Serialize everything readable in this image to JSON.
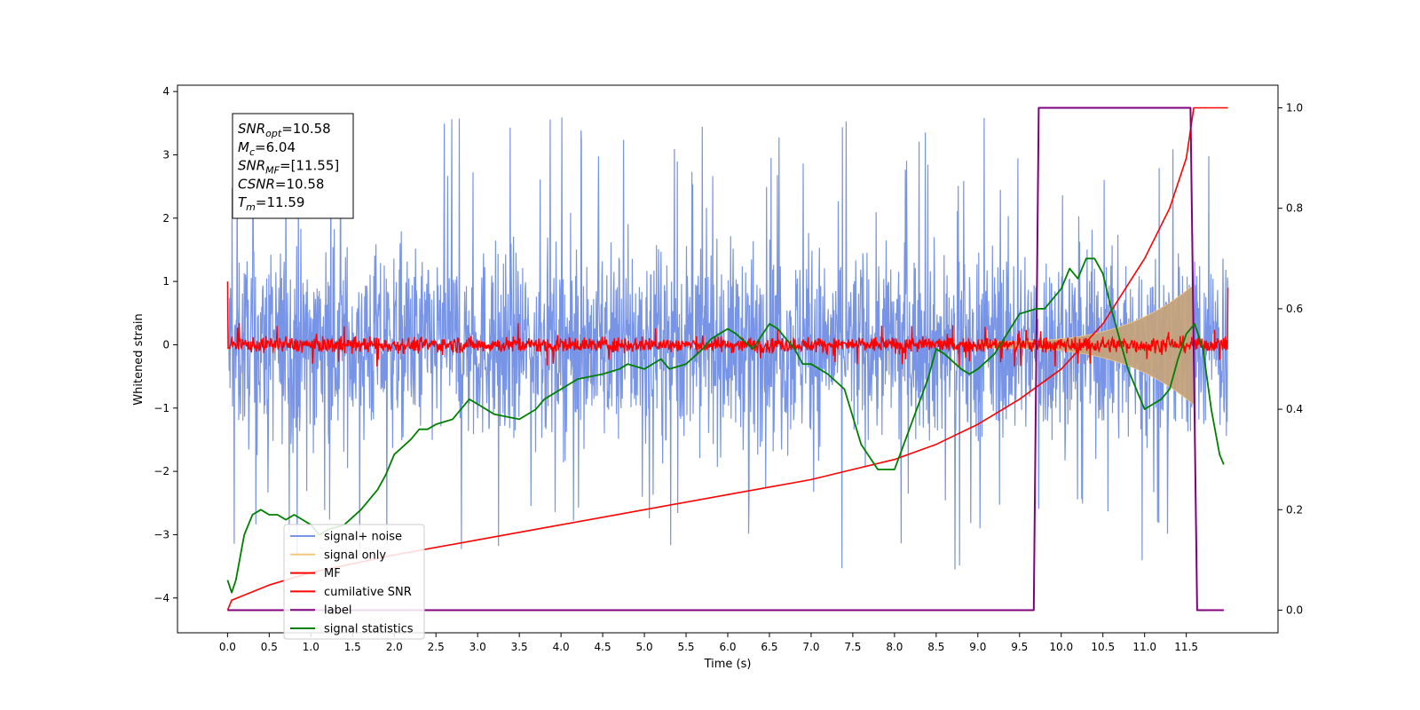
{
  "chart_data": {
    "type": "line",
    "xlabel": "Time (s)",
    "ylabel": "Whitened strain",
    "xlim": [
      -0.6,
      12.6
    ],
    "ylim": [
      -4.55,
      4.1
    ],
    "y2lim": [
      -0.045,
      1.045
    ],
    "xticks": [
      0.0,
      0.5,
      1.0,
      1.5,
      2.0,
      2.5,
      3.0,
      3.5,
      4.0,
      4.5,
      5.0,
      5.5,
      6.0,
      6.5,
      7.0,
      7.5,
      8.0,
      8.5,
      9.0,
      9.5,
      10.0,
      10.5,
      11.0,
      11.5
    ],
    "xtick_labels": [
      "0.0",
      "0.5",
      "1.0",
      "1.5",
      "2.0",
      "2.5",
      "3.0",
      "3.5",
      "4.0",
      "4.5",
      "5.0",
      "5.5",
      "6.0",
      "6.5",
      "7.0",
      "7.5",
      "8.0",
      "8.5",
      "9.0",
      "9.5",
      "10.0",
      "10.5",
      "11.0",
      "11.5"
    ],
    "yticks": [
      -4,
      -3,
      -2,
      -1,
      0,
      1,
      2,
      3,
      4
    ],
    "ytick_labels": [
      "−4",
      "−3",
      "−2",
      "−1",
      "0",
      "1",
      "2",
      "3",
      "4"
    ],
    "y2ticks": [
      0.0,
      0.2,
      0.4,
      0.6,
      0.8,
      1.0
    ],
    "y2tick_labels": [
      "0.0",
      "0.2",
      "0.4",
      "0.6",
      "0.8",
      "1.0"
    ],
    "grid": false,
    "legend_position": "lower-left",
    "annotation_box": [
      {
        "sym": "SNR",
        "sub": "opt",
        "rest": "=10.58"
      },
      {
        "sym": "M",
        "sub": "c",
        "rest": "=6.04"
      },
      {
        "sym": "SNR",
        "sub": "MF",
        "rest": "=[11.55]"
      },
      {
        "sym": "CSNR",
        "sub": "",
        "rest": "=10.58"
      },
      {
        "sym": "T",
        "sub": "m",
        "rest": "=11.59"
      }
    ],
    "series": [
      {
        "name": "signal+ noise",
        "color": "#7894e6",
        "axis": "left",
        "style": "noise-band",
        "x_range": [
          0.0,
          12.0
        ],
        "approx_std": 0.9,
        "envelope_max": 3.7,
        "envelope_min": -4.15
      },
      {
        "name": "signal only",
        "color": "#f5c77e",
        "fill": "#c4a27c",
        "axis": "left",
        "style": "chirp-envelope",
        "x_range": [
          9.0,
          11.59
        ],
        "amplitude_end": 0.95
      },
      {
        "name": "MF",
        "color": "#ff0000",
        "axis": "left",
        "style": "noise-band",
        "x_range": [
          0.0,
          12.0
        ],
        "approx_std": 0.07,
        "edge_values": [
          1.0,
          0.9
        ]
      },
      {
        "name": "cumilative SNR",
        "color": "#ff0000",
        "axis": "right",
        "x": [
          0.0,
          0.05,
          0.5,
          1.0,
          2.0,
          3.0,
          4.0,
          5.0,
          6.0,
          7.0,
          7.5,
          8.0,
          8.5,
          9.0,
          9.5,
          10.0,
          10.5,
          11.0,
          11.3,
          11.5,
          11.59,
          12.0
        ],
        "values": [
          0.0,
          0.02,
          0.05,
          0.075,
          0.11,
          0.14,
          0.17,
          0.2,
          0.23,
          0.26,
          0.28,
          0.3,
          0.33,
          0.37,
          0.42,
          0.48,
          0.57,
          0.7,
          0.8,
          0.9,
          1.0,
          1.0
        ]
      },
      {
        "name": "label",
        "color": "#800080",
        "axis": "right",
        "x": [
          0.0,
          9.67,
          9.73,
          11.55,
          11.63,
          11.95
        ],
        "values": [
          0.0,
          0.0,
          1.0,
          1.0,
          0.0,
          0.0
        ]
      },
      {
        "name": "signal statistics",
        "color": "#008000",
        "axis": "right",
        "x": [
          0.0,
          0.05,
          0.1,
          0.2,
          0.3,
          0.4,
          0.5,
          0.6,
          0.7,
          0.8,
          0.9,
          1.0,
          1.1,
          1.2,
          1.4,
          1.6,
          1.8,
          1.9,
          2.0,
          2.2,
          2.3,
          2.4,
          2.5,
          2.7,
          2.8,
          2.9,
          3.0,
          3.2,
          3.5,
          3.7,
          3.8,
          4.0,
          4.2,
          4.5,
          4.7,
          4.8,
          5.0,
          5.2,
          5.3,
          5.5,
          5.7,
          5.8,
          5.9,
          6.0,
          6.1,
          6.3,
          6.5,
          6.6,
          6.8,
          6.9,
          7.0,
          7.1,
          7.2,
          7.4,
          7.6,
          7.8,
          7.9,
          8.0,
          8.2,
          8.4,
          8.5,
          8.6,
          8.8,
          8.9,
          9.0,
          9.2,
          9.5,
          9.7,
          9.8,
          10.0,
          10.1,
          10.2,
          10.3,
          10.4,
          10.5,
          10.6,
          10.8,
          11.0,
          11.1,
          11.2,
          11.3,
          11.4,
          11.5,
          11.6,
          11.7,
          11.8,
          11.9,
          11.95
        ],
        "values": [
          0.06,
          0.035,
          0.06,
          0.15,
          0.19,
          0.2,
          0.19,
          0.19,
          0.18,
          0.19,
          0.18,
          0.17,
          0.15,
          0.16,
          0.17,
          0.2,
          0.24,
          0.27,
          0.31,
          0.34,
          0.36,
          0.36,
          0.37,
          0.38,
          0.4,
          0.42,
          0.41,
          0.39,
          0.38,
          0.4,
          0.42,
          0.44,
          0.46,
          0.47,
          0.48,
          0.49,
          0.48,
          0.5,
          0.48,
          0.49,
          0.52,
          0.54,
          0.55,
          0.56,
          0.55,
          0.52,
          0.57,
          0.56,
          0.52,
          0.49,
          0.49,
          0.48,
          0.47,
          0.44,
          0.33,
          0.28,
          0.28,
          0.28,
          0.37,
          0.46,
          0.52,
          0.51,
          0.48,
          0.47,
          0.48,
          0.51,
          0.59,
          0.6,
          0.6,
          0.64,
          0.68,
          0.66,
          0.7,
          0.7,
          0.67,
          0.6,
          0.48,
          0.4,
          0.41,
          0.42,
          0.44,
          0.5,
          0.55,
          0.57,
          0.52,
          0.4,
          0.31,
          0.29
        ]
      }
    ]
  }
}
